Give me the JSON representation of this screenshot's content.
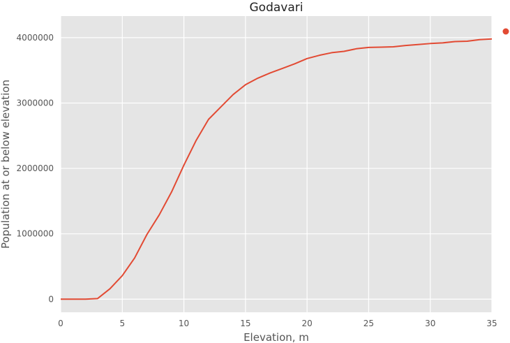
{
  "chart_data": {
    "type": "line",
    "title": "Godavari",
    "xlabel": "Elevation, m",
    "ylabel": "Population at or below elevation",
    "xlim": [
      0,
      35
    ],
    "ylim": [
      -200000,
      4330000
    ],
    "xticks": [
      0,
      5,
      10,
      15,
      20,
      25,
      30,
      35
    ],
    "yticks": [
      0,
      1000000,
      2000000,
      3000000,
      4000000
    ],
    "grid": true,
    "legend": "top-right",
    "series": [
      {
        "color": "#E24A33",
        "x": [
          0,
          1,
          2,
          3,
          4,
          5,
          6,
          7,
          8,
          9,
          10,
          11,
          12,
          13,
          14,
          15,
          16,
          17,
          18,
          19,
          20,
          21,
          22,
          23,
          24,
          25,
          26,
          27,
          28,
          29,
          30,
          31,
          32,
          33,
          34,
          35
        ],
        "y": [
          0,
          0,
          0,
          10000,
          160000,
          360000,
          630000,
          990000,
          1290000,
          1640000,
          2050000,
          2430000,
          2750000,
          2940000,
          3130000,
          3280000,
          3380000,
          3460000,
          3530000,
          3600000,
          3680000,
          3730000,
          3770000,
          3790000,
          3830000,
          3850000,
          3855000,
          3860000,
          3880000,
          3895000,
          3910000,
          3920000,
          3940000,
          3945000,
          3970000,
          3980000
        ]
      }
    ]
  }
}
